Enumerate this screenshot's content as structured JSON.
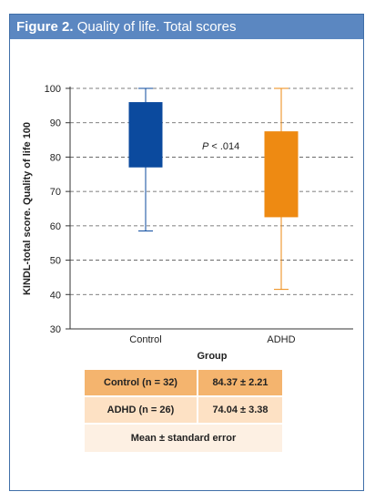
{
  "figure": {
    "label": "Figure 2.",
    "title": "Quality of life. Total scores"
  },
  "chart_data": {
    "type": "box",
    "ylabel": "KINDL-total score. Quality of life 100",
    "xlabel": "Group",
    "ylim": [
      30,
      100
    ],
    "yticks": [
      30,
      40,
      50,
      60,
      70,
      80,
      90,
      100
    ],
    "grid": true,
    "categories": [
      "Control",
      "ADHD"
    ],
    "series": [
      {
        "name": "Control",
        "color": "#0b4a9e",
        "whisker_low": 58.5,
        "box_low": 77.0,
        "box_high": 96.0,
        "whisker_high": 100.0
      },
      {
        "name": "ADHD",
        "color": "#ee8a12",
        "whisker_low": 41.5,
        "box_low": 62.5,
        "box_high": 87.5,
        "whisker_high": 100.0
      }
    ],
    "annotation": {
      "prefix": "P",
      "text": " < .014"
    }
  },
  "stats_table": {
    "rows": [
      {
        "group": "Control (n = 32)",
        "value": "84.37 ± 2.21"
      },
      {
        "group": "ADHD  (n = 26)",
        "value": "74.04 ± 3.38"
      }
    ],
    "footer": "Mean ± standard error"
  }
}
